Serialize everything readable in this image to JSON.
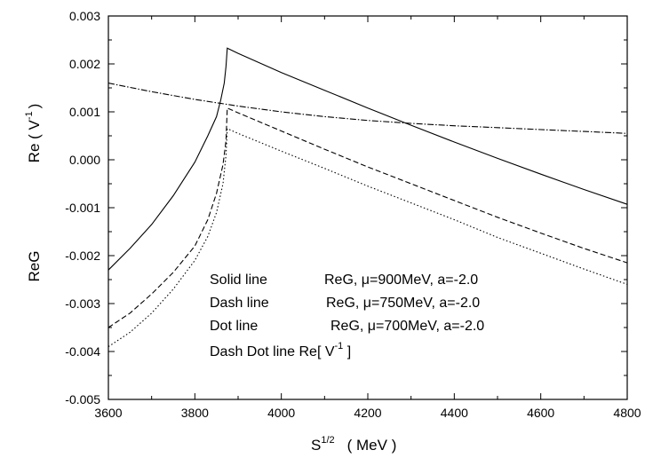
{
  "chart_data": {
    "type": "line",
    "title": "",
    "xlabel": {
      "base": "S",
      "sup": "1/2",
      "unit": "( MeV )"
    },
    "ylabel": {
      "main": "Re ( V",
      "sup": "-1",
      "close": ")",
      "secondary": "ReG"
    },
    "xlim": [
      3600,
      4800
    ],
    "ylim": [
      -0.005,
      0.003
    ],
    "x_ticks": [
      "3600",
      "3800",
      "4000",
      "4200",
      "4400",
      "4600",
      "4800"
    ],
    "y_ticks": [
      "-0.005",
      "-0.004",
      "-0.003",
      "-0.002",
      "-0.001",
      "0.000",
      "0.001",
      "0.002",
      "0.003"
    ],
    "grid": false,
    "legend_position": "bottom-center",
    "legend": [
      {
        "style": "Solid line",
        "desc_prefix": "ReG, ",
        "mu_symbol": "μ",
        "desc_suffix": "=900MeV, a=-2.0"
      },
      {
        "style": "Dash line",
        "desc_prefix": "ReG, ",
        "mu_symbol": "μ",
        "desc_suffix": "=750MeV, a=-2.0"
      },
      {
        "style": "Dot line",
        "desc_prefix": "ReG, ",
        "mu_symbol": "μ",
        "desc_suffix": "=700MeV, a=-2.0"
      },
      {
        "style": "Dash Dot line Re[ V",
        "sup": "-1",
        "close": " ]"
      }
    ],
    "series": [
      {
        "line_style": "solid",
        "x": [
          3600,
          3650,
          3700,
          3750,
          3800,
          3830,
          3850,
          3860,
          3868,
          3872,
          3875,
          3900,
          4000,
          4100,
          4200,
          4300,
          4400,
          4500,
          4600,
          4700,
          4800
        ],
        "y": [
          -0.0023,
          -0.00185,
          -0.00135,
          -0.00075,
          -5e-05,
          0.0005,
          0.0009,
          0.00125,
          0.0016,
          0.00195,
          0.00233,
          0.00222,
          0.00182,
          0.00145,
          0.00108,
          0.00072,
          0.00037,
          3e-05,
          -0.0003,
          -0.00062,
          -0.00093
        ]
      },
      {
        "line_style": "dash",
        "x": [
          3600,
          3650,
          3700,
          3750,
          3800,
          3830,
          3850,
          3865,
          3872,
          3875,
          3900,
          4000,
          4100,
          4200,
          4300,
          4400,
          4500,
          4600,
          4700,
          4800
        ],
        "y": [
          -0.0035,
          -0.0032,
          -0.0028,
          -0.00235,
          -0.0018,
          -0.00125,
          -0.0007,
          -0.0001,
          0.0004,
          0.00108,
          0.00098,
          0.0006,
          0.00022,
          -0.00015,
          -0.0005,
          -0.00085,
          -0.0012,
          -0.00153,
          -0.00185,
          -0.00215
        ]
      },
      {
        "line_style": "dot",
        "x": [
          3600,
          3650,
          3700,
          3750,
          3800,
          3830,
          3850,
          3865,
          3872,
          3875,
          3900,
          4000,
          4100,
          4200,
          4300,
          4400,
          4500,
          4600,
          4700,
          4800
        ],
        "y": [
          -0.0039,
          -0.0036,
          -0.0032,
          -0.0027,
          -0.0021,
          -0.0016,
          -0.0011,
          -0.0005,
          0.0001,
          0.00065,
          0.00055,
          0.00018,
          -0.00018,
          -0.00055,
          -0.0009,
          -0.00125,
          -0.00162,
          -0.00195,
          -0.00228,
          -0.0026
        ]
      },
      {
        "line_style": "dashdot",
        "x": [
          3600,
          3700,
          3800,
          3900,
          4000,
          4100,
          4200,
          4300,
          4400,
          4500,
          4600,
          4700,
          4800
        ],
        "y": [
          0.0016,
          0.00142,
          0.00126,
          0.00112,
          0.001,
          0.0009,
          0.00082,
          0.00076,
          0.00071,
          0.00067,
          0.00063,
          0.00059,
          0.00055
        ]
      }
    ]
  }
}
